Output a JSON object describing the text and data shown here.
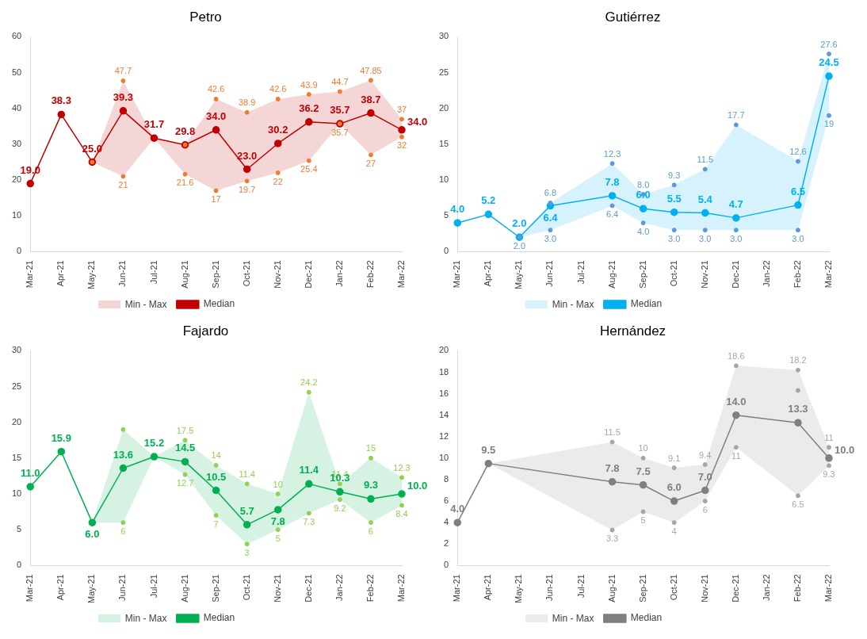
{
  "chart_data": [
    {
      "type": "line",
      "title": "Petro",
      "annotations": [
        "Min - Max"
      ],
      "categories": [
        "Mar-21",
        "Apr-21",
        "May-21",
        "Jun-21",
        "Jul-21",
        "Aug-21",
        "Sep-21",
        "Oct-21",
        "Nov-21",
        "Dec-21",
        "Jan-22",
        "Feb-22",
        "Mar-22"
      ],
      "ylim": [
        0,
        60
      ],
      "yticks": [
        0,
        10,
        20,
        30,
        40,
        50,
        60
      ],
      "legend": "bottom",
      "series": [
        {
          "type": "scatter",
          "color": "#ed7d31",
          "x": [
            "May-21",
            "Jun-21",
            "Jun-21",
            "Aug-21",
            "Aug-21",
            "Sep-21",
            "Sep-21",
            "Oct-21",
            "Oct-21",
            "Nov-21",
            "Nov-21",
            "Dec-21",
            "Dec-21",
            "Jan-22",
            "Jan-22",
            "Feb-22",
            "Feb-22",
            "Mar-22",
            "Mar-22"
          ],
          "values": [
            25,
            47.7,
            21,
            29.8,
            21.6,
            42.6,
            17,
            38.9,
            19.7,
            42.6,
            22,
            43.9,
            25.4,
            44.7,
            35.7,
            47.85,
            27,
            37,
            32
          ],
          "value_labels": [
            null,
            "47.7",
            "21",
            null,
            "21.6",
            "42.6",
            "17",
            "38.9",
            "19.7",
            "42.6",
            "22",
            "43.9",
            "25.4",
            "44.7",
            "35.7",
            "47.85",
            "27",
            "37",
            "32"
          ]
        },
        {
          "name": "Median",
          "type": "line",
          "marker": "circle",
          "color": "#c00000",
          "values": [
            19.0,
            38.3,
            25.0,
            39.3,
            31.7,
            29.8,
            34.0,
            23.0,
            30.2,
            36.2,
            35.7,
            38.7,
            34.0
          ],
          "lower": [
            null,
            null,
            25,
            21,
            31.7,
            21.6,
            17,
            19.7,
            22,
            25.4,
            35.7,
            27,
            32
          ],
          "upper": [
            null,
            null,
            25,
            47.7,
            31.7,
            29.8,
            42.6,
            38.9,
            42.6,
            43.9,
            44.7,
            47.85,
            37
          ],
          "value_labels": [
            "19.0",
            "38.3",
            "25.0",
            "39.3",
            "31.7",
            "29.8",
            "34.0",
            "23.0",
            "30.2",
            "36.2",
            "35.7",
            "38.7",
            "34.0"
          ]
        }
      ]
    },
    {
      "type": "line",
      "title": "Gutiérrez",
      "annotations": [
        "Min - Max"
      ],
      "categories": [
        "Mar-21",
        "Apr-21",
        "May-21",
        "Jun-21",
        "Jul-21",
        "Aug-21",
        "Sep-21",
        "Oct-21",
        "Nov-21",
        "Dec-21",
        "Jan-22",
        "Feb-22",
        "Mar-22"
      ],
      "ylim": [
        0,
        30
      ],
      "yticks": [
        0,
        5,
        10,
        15,
        20,
        25,
        30
      ],
      "legend": "bottom",
      "series": [
        {
          "type": "scatter",
          "color": "#5b9bd5",
          "x": [
            "May-21",
            "Jun-21",
            "Jun-21",
            "Aug-21",
            "Aug-21",
            "Sep-21",
            "Sep-21",
            "Oct-21",
            "Oct-21",
            "Nov-21",
            "Nov-21",
            "Dec-21",
            "Dec-21",
            "Feb-22",
            "Feb-22",
            "Mar-22",
            "Mar-22"
          ],
          "values": [
            2,
            6.8,
            3,
            12.3,
            6.4,
            8,
            4,
            9.3,
            3,
            11.5,
            3,
            17.7,
            3,
            12.6,
            3,
            27.6,
            19
          ],
          "value_labels": [
            "2.0",
            "6.8",
            "3.0",
            "12.3",
            "6.4",
            "8.0",
            "4.0",
            "9.3",
            "3.0",
            "11.5",
            "3.0",
            "17.7",
            "3.0",
            "12.6",
            "3.0",
            "27.6",
            "19"
          ]
        },
        {
          "name": "Median",
          "type": "line",
          "marker": "circle",
          "color": "#00b0f0",
          "values": [
            4.0,
            5.2,
            2.0,
            6.4,
            null,
            7.8,
            6.0,
            5.5,
            5.4,
            4.7,
            null,
            6.5,
            24.5
          ],
          "lower": [
            null,
            null,
            2,
            3,
            null,
            6.4,
            4,
            3,
            3,
            3,
            null,
            3,
            19
          ],
          "upper": [
            null,
            null,
            2,
            6.8,
            null,
            12.3,
            8,
            9.3,
            11.5,
            17.7,
            null,
            12.6,
            27.6
          ],
          "value_labels": [
            "4.0",
            "5.2",
            "2.0",
            "6.4",
            null,
            "7.8",
            "6.0",
            "5.5",
            "5.4",
            "4.7",
            null,
            "6.5",
            "24.5"
          ]
        }
      ]
    },
    {
      "type": "line",
      "title": "Fajardo",
      "annotations": [
        "Min - Max"
      ],
      "categories": [
        "Mar-21",
        "Apr-21",
        "May-21",
        "Jun-21",
        "Jul-21",
        "Aug-21",
        "Sep-21",
        "Oct-21",
        "Nov-21",
        "Dec-21",
        "Jan-22",
        "Feb-22",
        "Mar-22"
      ],
      "ylim": [
        0,
        30
      ],
      "yticks": [
        0,
        5,
        10,
        15,
        20,
        25,
        30
      ],
      "legend": "bottom",
      "series": [
        {
          "type": "scatter",
          "color": "#92d050",
          "x": [
            "Jun-21",
            "Jun-21",
            "Aug-21",
            "Aug-21",
            "Sep-21",
            "Sep-21",
            "Oct-21",
            "Oct-21",
            "Nov-21",
            "Nov-21",
            "Dec-21",
            "Dec-21",
            "Jan-22",
            "Jan-22",
            "Feb-22",
            "Feb-22",
            "Mar-22",
            "Mar-22"
          ],
          "values": [
            19,
            6,
            17.5,
            12.7,
            14,
            7,
            11.4,
            3,
            10,
            5,
            24.2,
            7.3,
            11.4,
            9.2,
            15,
            6,
            12.3,
            8.4
          ],
          "value_labels": [
            null,
            "6",
            "17.5",
            "12.7",
            "14",
            "7",
            "11.4",
            "3",
            "10",
            "5",
            "24.2",
            "7.3",
            "11.4",
            "9.2",
            "15",
            "6",
            "12.3",
            "8.4"
          ]
        },
        {
          "name": "Median",
          "type": "line",
          "marker": "circle",
          "color": "#00b050",
          "values": [
            11.0,
            15.9,
            6.0,
            13.6,
            15.2,
            14.5,
            10.5,
            5.7,
            7.8,
            11.4,
            10.3,
            9.3,
            10.0
          ],
          "lower": [
            null,
            null,
            6,
            6,
            15.2,
            12.7,
            7,
            3,
            5,
            7.3,
            9.2,
            6,
            8.4
          ],
          "upper": [
            null,
            null,
            6,
            19,
            15.2,
            17.5,
            14,
            11.4,
            10,
            24.2,
            11.4,
            15,
            12.3
          ],
          "value_labels": [
            "11.0",
            "15.9",
            "6.0",
            "13.6",
            "15.2",
            "14.5",
            "10.5",
            "5.7",
            "7.8",
            "11.4",
            "10.3",
            "9.3",
            "10.0"
          ]
        }
      ]
    },
    {
      "type": "line",
      "title": "Hernández",
      "annotations": [
        "Min - Max"
      ],
      "categories": [
        "Mar-21",
        "Apr-21",
        "May-21",
        "Jun-21",
        "Jul-21",
        "Aug-21",
        "Sep-21",
        "Oct-21",
        "Nov-21",
        "Dec-21",
        "Jan-22",
        "Feb-22",
        "Mar-22"
      ],
      "ylim": [
        0,
        20
      ],
      "yticks": [
        0,
        2,
        4,
        6,
        8,
        10,
        12,
        14,
        16,
        18,
        20
      ],
      "legend": "bottom",
      "series": [
        {
          "type": "scatter",
          "color": "#a6a6a6",
          "x": [
            "Aug-21",
            "Aug-21",
            "Sep-21",
            "Sep-21",
            "Oct-21",
            "Oct-21",
            "Nov-21",
            "Nov-21",
            "Dec-21",
            "Dec-21",
            "Feb-22",
            "Feb-22",
            "Feb-22",
            "Mar-22",
            "Mar-22"
          ],
          "values": [
            11.5,
            3.3,
            10,
            5,
            9.1,
            4,
            9.4,
            6,
            18.6,
            11,
            18.2,
            16.3,
            6.5,
            11,
            9.3
          ],
          "value_labels": [
            "11.5",
            "3.3",
            "10",
            "5",
            "9.1",
            "4",
            "9.4",
            "6",
            "18.6",
            "11",
            "18.2",
            null,
            "6.5",
            "11",
            "9.3"
          ]
        },
        {
          "name": "Median",
          "type": "line",
          "marker": "circle",
          "color": "#7f7f7f",
          "values": [
            4.0,
            9.5,
            null,
            null,
            null,
            7.8,
            7.5,
            6.0,
            7.0,
            14.0,
            null,
            13.3,
            10.0
          ],
          "lower": [
            null,
            9.5,
            null,
            null,
            null,
            3.3,
            5,
            4,
            6,
            11,
            null,
            6.5,
            9.3
          ],
          "upper": [
            null,
            9.5,
            null,
            null,
            null,
            11.5,
            10,
            9.1,
            9.4,
            18.6,
            null,
            18.2,
            11
          ],
          "value_labels": [
            "4.0",
            "9.5",
            null,
            null,
            null,
            "7.8",
            "7.5",
            "6.0",
            "7.0",
            "14.0",
            null,
            "13.3",
            "10.0"
          ]
        }
      ]
    }
  ]
}
